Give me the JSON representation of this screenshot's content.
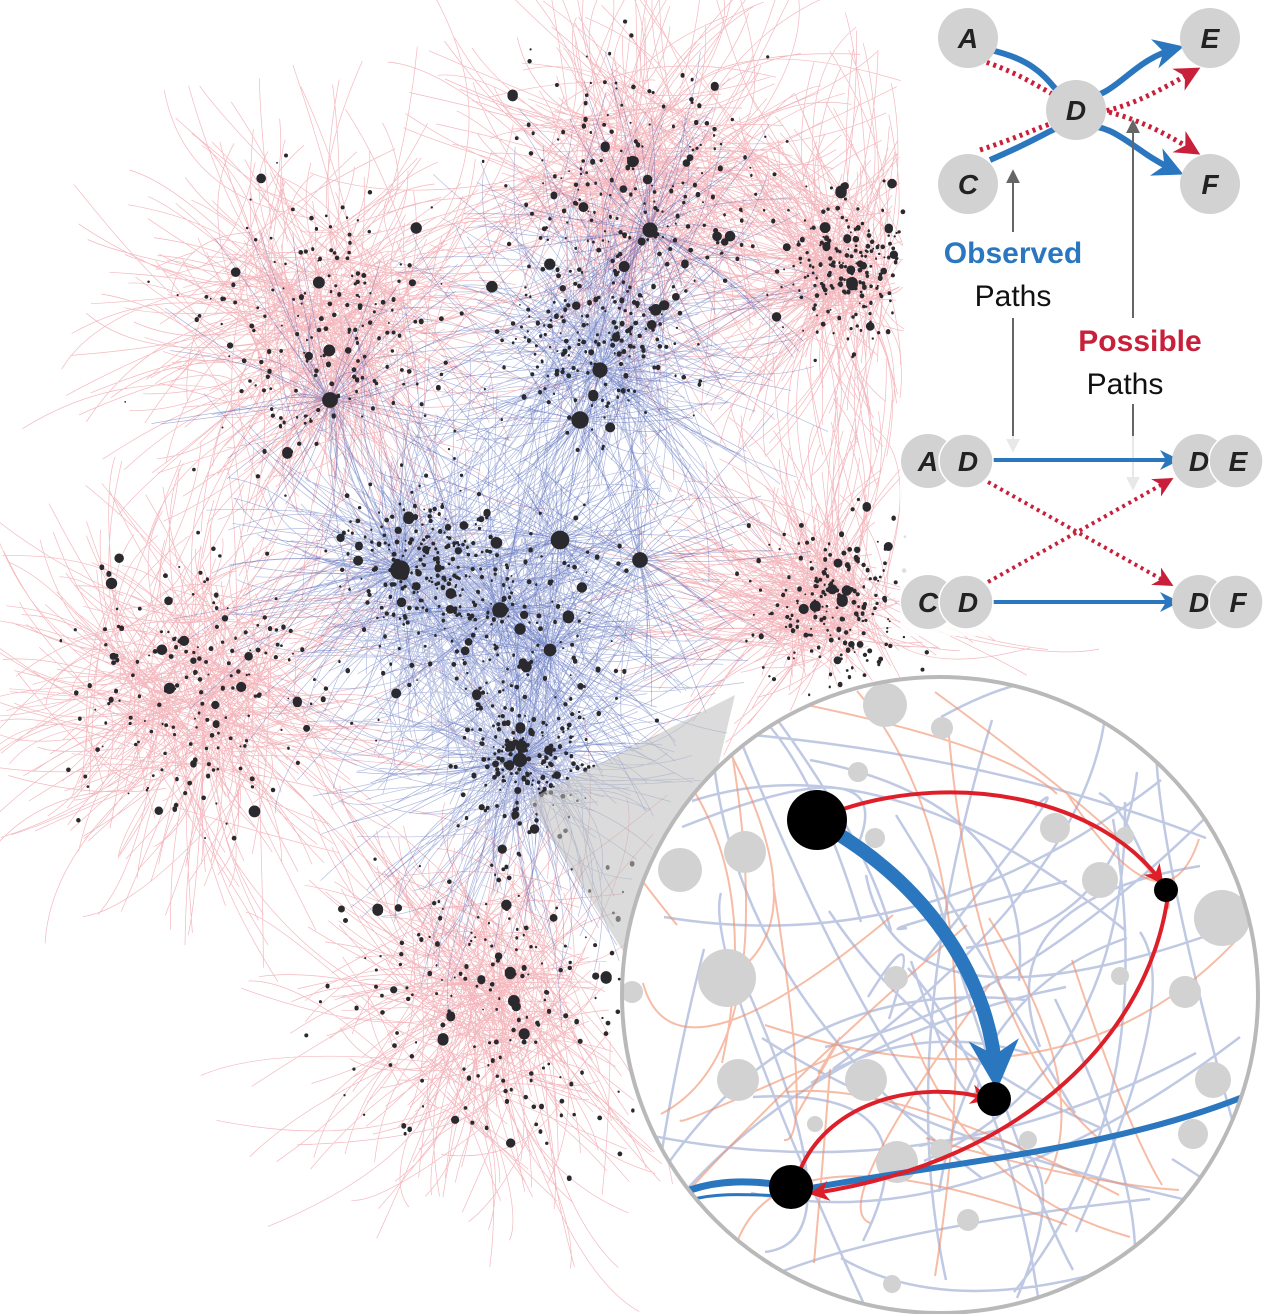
{
  "colors": {
    "observed": "#2a77bf",
    "possible": "#c8203a",
    "network_red": "#dd3344",
    "network_blue": "#2b45a8",
    "node_dark": "#2a2a2e",
    "node_gray": "#d2d2d2",
    "lens_border": "#b9b9b9"
  },
  "top_diagram": {
    "nodes": [
      "A",
      "C",
      "D",
      "E",
      "F"
    ]
  },
  "legend": {
    "observed_word": "Observed",
    "observed_paths_word": "Paths",
    "possible_word": "Possible",
    "possible_paths_word": "Paths"
  },
  "pair_diagram": {
    "pairs": [
      {
        "left": "A",
        "right": "D"
      },
      {
        "left": "C",
        "right": "D"
      },
      {
        "left": "D",
        "right": "E"
      },
      {
        "left": "D",
        "right": "F"
      }
    ]
  },
  "network": {
    "description_icon": "network-graph-icon"
  },
  "magnifier": {
    "icon": "magnifier-lens-icon"
  }
}
